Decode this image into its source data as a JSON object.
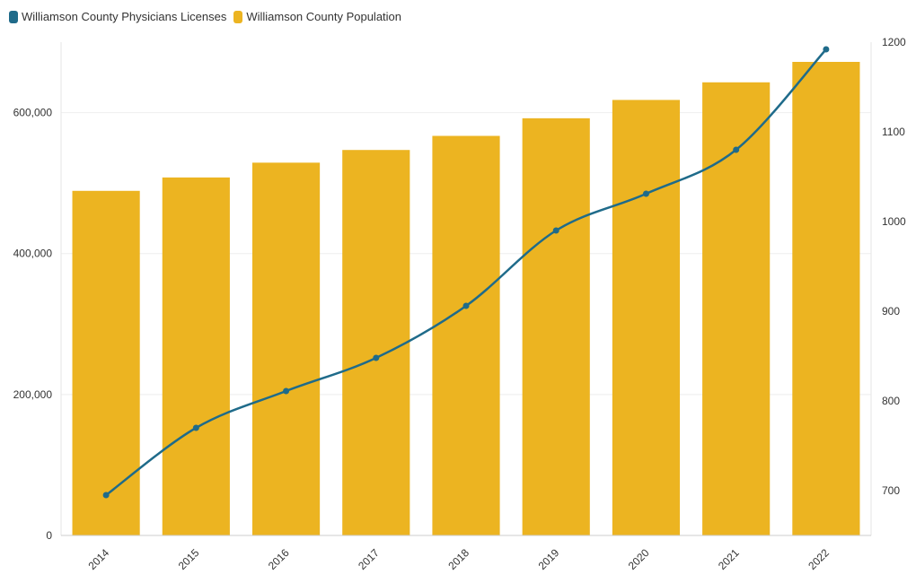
{
  "chart_data": {
    "type": "bar",
    "categories": [
      "2014",
      "2015",
      "2016",
      "2017",
      "2018",
      "2019",
      "2020",
      "2021",
      "2022"
    ],
    "series": [
      {
        "name": "Williamson County Physicians Licenses",
        "type": "line",
        "axis": "right",
        "color": "#1f6b8a",
        "values": [
          695,
          770,
          811,
          848,
          906,
          990,
          1031,
          1080,
          1192
        ]
      },
      {
        "name": "Williamson County Population",
        "type": "bar",
        "axis": "left",
        "color": "#ecb421",
        "values": [
          489000,
          508000,
          529000,
          547000,
          567000,
          592000,
          618000,
          643000,
          672000
        ]
      }
    ],
    "left_axis": {
      "min": 0,
      "max": 700000,
      "ticks": [
        0,
        200000,
        400000,
        600000
      ],
      "tick_labels": [
        "0",
        "200,000",
        "400,000",
        "600,000"
      ]
    },
    "right_axis": {
      "min": 650,
      "max": 1200,
      "ticks": [
        700,
        800,
        900,
        1000,
        1100,
        1200
      ],
      "tick_labels": [
        "700",
        "800",
        "900",
        "1000",
        "1100",
        "1200"
      ]
    },
    "grid": true,
    "legend_position": "top-left",
    "x_label_rotation": "-45"
  }
}
